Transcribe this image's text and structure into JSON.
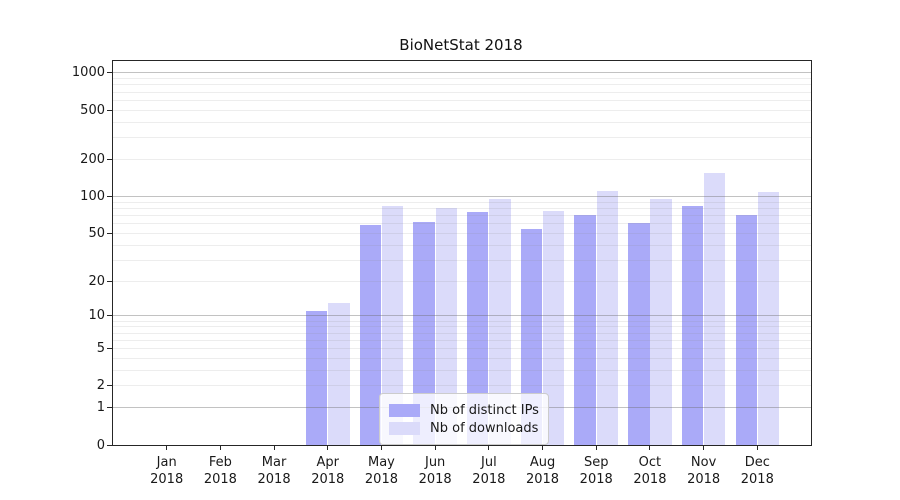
{
  "title": "BioNetStat 2018",
  "chart_data": {
    "type": "bar",
    "title": "BioNetStat 2018",
    "month_labels": [
      "Jan",
      "Feb",
      "Mar",
      "Apr",
      "May",
      "Jun",
      "Jul",
      "Aug",
      "Sep",
      "Oct",
      "Nov",
      "Dec"
    ],
    "year_label": "2018",
    "categories": [
      "Jan 2018",
      "Feb 2018",
      "Mar 2018",
      "Apr 2018",
      "May 2018",
      "Jun 2018",
      "Jul 2018",
      "Aug 2018",
      "Sep 2018",
      "Oct 2018",
      "Nov 2018",
      "Dec 2018"
    ],
    "series": [
      {
        "name": "Nb of distinct IPs",
        "color": "#aaaaf8",
        "values": [
          0,
          0,
          0,
          11,
          58,
          62,
          75,
          54,
          70,
          61,
          84,
          71
        ]
      },
      {
        "name": "Nb of downloads",
        "color": "#dbdbfa",
        "values": [
          0,
          0,
          0,
          13,
          84,
          80,
          96,
          76,
          111,
          96,
          155,
          108
        ]
      }
    ],
    "y_axis": {
      "scale": "log1p",
      "ticks": [
        0,
        1,
        2,
        5,
        10,
        20,
        50,
        100,
        200,
        500,
        1000
      ],
      "major_gridline_values": [
        1,
        10,
        100,
        1000
      ],
      "range": [
        0,
        1000
      ]
    },
    "grid": "both",
    "legend": {
      "position": "lower-center",
      "entries": [
        "Nb of distinct IPs",
        "Nb of downloads"
      ]
    }
  },
  "styles": {
    "bar_dark": "#aaaaf8",
    "bar_light": "#dbdbfa",
    "spine": "#262626",
    "background": "#ffffff"
  }
}
